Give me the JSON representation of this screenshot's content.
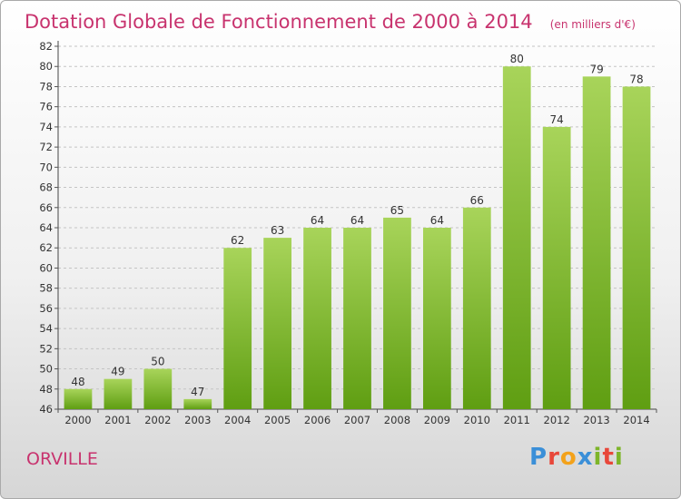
{
  "chart_data": {
    "type": "bar",
    "title": "Dotation Globale de Fonctionnement de 2000 à 2014",
    "subtitle": "(en milliers d'€)",
    "xlabel": "",
    "ylabel": "",
    "categories": [
      "2000",
      "2001",
      "2002",
      "2003",
      "2004",
      "2005",
      "2006",
      "2007",
      "2008",
      "2009",
      "2010",
      "2011",
      "2012",
      "2013",
      "2014"
    ],
    "values": [
      48,
      49,
      50,
      47,
      62,
      63,
      64,
      64,
      65,
      64,
      66,
      80,
      74,
      79,
      78
    ],
    "ylim": [
      46,
      82
    ],
    "ytick_step": 2,
    "grid": "horizontal dashed",
    "bar_color_top": "#a8d45a",
    "bar_color_bottom": "#5f9e12"
  },
  "footer": {
    "commune": "ORVILLE",
    "logo_letters": [
      "P",
      "r",
      "o",
      "x",
      "i",
      "t",
      "i"
    ],
    "logo_colors": [
      "#3a8fd8",
      "#e8473a",
      "#f3a21b",
      "#3a8fd8",
      "#7db529",
      "#e8473a",
      "#7db529"
    ]
  }
}
